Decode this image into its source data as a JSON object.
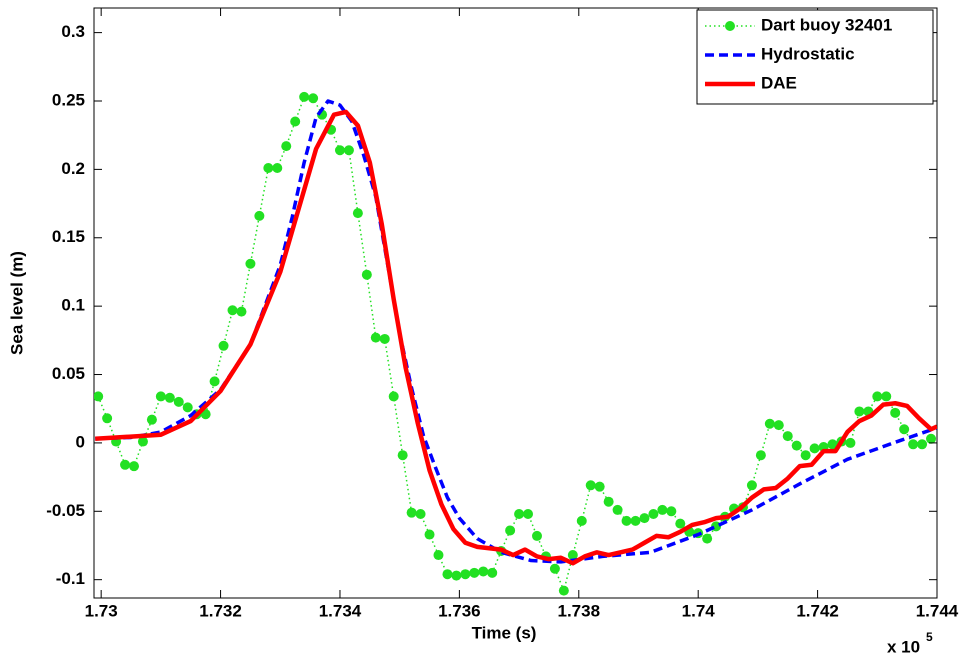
{
  "chart_data": {
    "type": "line",
    "x_label": "Time (s)",
    "y_label": "Sea level (m)",
    "x_multiplier": "x 10",
    "x_exponent": "5",
    "xlim": [
      1.72988,
      1.744
    ],
    "ylim": [
      -0.1134,
      0.318
    ],
    "xticks": [
      1.73,
      1.732,
      1.734,
      1.736,
      1.738,
      1.74,
      1.742,
      1.744
    ],
    "yticks": [
      -0.1,
      -0.05,
      0,
      0.05,
      0.1,
      0.15,
      0.2,
      0.25,
      0.3
    ],
    "legend": "top-right",
    "series": [
      {
        "name": "Dart buoy 32401",
        "color": "#22e022",
        "line_style": "dotted",
        "marker": "circle",
        "x": [
          1.72995,
          1.7301,
          1.73025,
          1.7304,
          1.73055,
          1.7307,
          1.73085,
          1.731,
          1.73115,
          1.7313,
          1.73145,
          1.7316,
          1.73175,
          1.7319,
          1.73205,
          1.7322,
          1.73235,
          1.7325,
          1.73265,
          1.7328,
          1.73295,
          1.7331,
          1.73325,
          1.7334,
          1.73355,
          1.7337,
          1.73385,
          1.734,
          1.73415,
          1.7343,
          1.73445,
          1.7346,
          1.73475,
          1.7349,
          1.73505,
          1.7352,
          1.73535,
          1.7355,
          1.73565,
          1.7358,
          1.73595,
          1.7361,
          1.73625,
          1.7364,
          1.73655,
          1.7367,
          1.73685,
          1.737,
          1.73715,
          1.7373,
          1.73745,
          1.7376,
          1.73775,
          1.7379,
          1.73805,
          1.7382,
          1.73835,
          1.7385,
          1.73865,
          1.7388,
          1.73895,
          1.7391,
          1.73925,
          1.7394,
          1.73955,
          1.7397,
          1.73985,
          1.74,
          1.74015,
          1.7403,
          1.74045,
          1.7406,
          1.74075,
          1.7409,
          1.74105,
          1.7412,
          1.74135,
          1.7415,
          1.74165,
          1.7418,
          1.74195,
          1.7421,
          1.74225,
          1.7424,
          1.74255,
          1.7427,
          1.74285,
          1.743,
          1.74315,
          1.7433,
          1.74345,
          1.7436,
          1.74375,
          1.7439
        ],
        "values": [
          0.034,
          0.018,
          0.001,
          -0.016,
          -0.017,
          0.001,
          0.017,
          0.034,
          0.033,
          0.03,
          0.026,
          0.021,
          0.021,
          0.045,
          0.071,
          0.097,
          0.096,
          0.131,
          0.166,
          0.201,
          0.201,
          0.217,
          0.235,
          0.253,
          0.252,
          0.24,
          0.229,
          0.214,
          0.214,
          0.168,
          0.123,
          0.077,
          0.076,
          0.034,
          -0.009,
          -0.051,
          -0.052,
          -0.067,
          -0.082,
          -0.096,
          -0.097,
          -0.096,
          -0.095,
          -0.094,
          -0.095,
          -0.079,
          -0.064,
          -0.052,
          -0.052,
          -0.068,
          -0.083,
          -0.092,
          -0.108,
          -0.082,
          -0.057,
          -0.031,
          -0.032,
          -0.043,
          -0.049,
          -0.057,
          -0.057,
          -0.055,
          -0.052,
          -0.049,
          -0.05,
          -0.059,
          -0.065,
          -0.066,
          -0.07,
          -0.061,
          -0.054,
          -0.048,
          -0.047,
          -0.031,
          -0.009,
          0.014,
          0.013,
          0.005,
          -0.002,
          -0.009,
          -0.004,
          -0.003,
          -0.001,
          0.001,
          0.0,
          0.023,
          0.023,
          0.034,
          0.034,
          0.022,
          0.01,
          -0.001,
          -0.001,
          0.003
        ]
      },
      {
        "name": "Hydrostatic",
        "color": "#0000ff",
        "line_style": "dashed",
        "x": [
          1.7299,
          1.7305,
          1.731,
          1.7315,
          1.732,
          1.7325,
          1.733,
          1.7332,
          1.7334,
          1.7336,
          1.7338,
          1.734,
          1.7342,
          1.7344,
          1.7346,
          1.7348,
          1.735,
          1.7352,
          1.7354,
          1.7356,
          1.7358,
          1.736,
          1.7363,
          1.7367,
          1.7372,
          1.7377,
          1.7384,
          1.7392,
          1.74,
          1.7409,
          1.7417,
          1.7425,
          1.7434,
          1.744
        ],
        "values": [
          0.003,
          0.004,
          0.008,
          0.02,
          0.039,
          0.072,
          0.13,
          0.165,
          0.205,
          0.238,
          0.25,
          0.247,
          0.235,
          0.21,
          0.18,
          0.13,
          0.08,
          0.04,
          0.005,
          -0.018,
          -0.04,
          -0.055,
          -0.07,
          -0.08,
          -0.086,
          -0.087,
          -0.083,
          -0.08,
          -0.067,
          -0.049,
          -0.03,
          -0.012,
          0.002,
          0.011
        ]
      },
      {
        "name": "DAE",
        "color": "#ff0000",
        "line_style": "solid",
        "x": [
          1.7299,
          1.731,
          1.7315,
          1.732,
          1.7325,
          1.733,
          1.7333,
          1.7336,
          1.7339,
          1.7341,
          1.7343,
          1.7345,
          1.7347,
          1.7349,
          1.7351,
          1.7353,
          1.7355,
          1.7357,
          1.7359,
          1.7361,
          1.7363,
          1.7365,
          1.7367,
          1.7369,
          1.7371,
          1.7373,
          1.7375,
          1.7377,
          1.7379,
          1.7381,
          1.7383,
          1.7385,
          1.7387,
          1.7389,
          1.7391,
          1.7393,
          1.7395,
          1.7397,
          1.7399,
          1.7401,
          1.7403,
          1.7405,
          1.7407,
          1.7409,
          1.7411,
          1.7413,
          1.7415,
          1.7417,
          1.7419,
          1.7421,
          1.7423,
          1.7425,
          1.7427,
          1.7429,
          1.7431,
          1.7433,
          1.7435,
          1.7437,
          1.7439,
          1.744
        ],
        "values": [
          0.003,
          0.006,
          0.016,
          0.038,
          0.072,
          0.125,
          0.17,
          0.215,
          0.24,
          0.242,
          0.232,
          0.205,
          0.16,
          0.105,
          0.055,
          0.015,
          -0.02,
          -0.045,
          -0.063,
          -0.073,
          -0.076,
          -0.077,
          -0.078,
          -0.082,
          -0.078,
          -0.083,
          -0.085,
          -0.084,
          -0.088,
          -0.083,
          -0.08,
          -0.082,
          -0.08,
          -0.078,
          -0.073,
          -0.068,
          -0.069,
          -0.065,
          -0.06,
          -0.058,
          -0.055,
          -0.054,
          -0.048,
          -0.04,
          -0.034,
          -0.033,
          -0.026,
          -0.017,
          -0.016,
          -0.006,
          -0.006,
          0.008,
          0.016,
          0.02,
          0.028,
          0.029,
          0.027,
          0.018,
          0.01,
          0.012
        ]
      }
    ]
  }
}
